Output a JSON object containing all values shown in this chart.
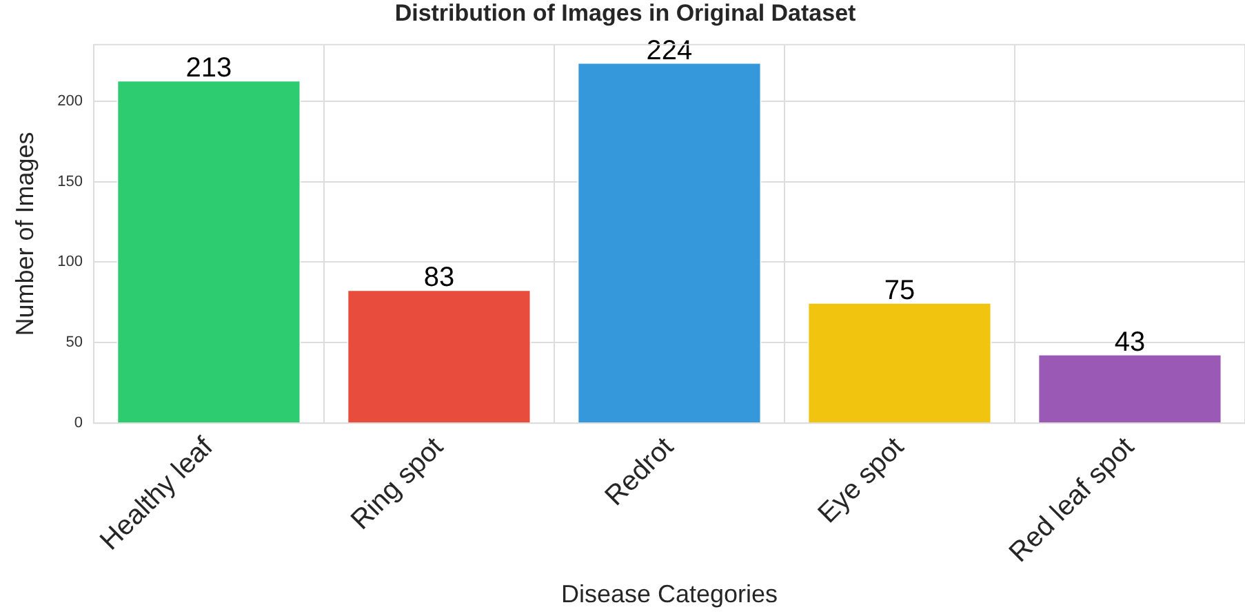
{
  "chart_data": {
    "type": "bar",
    "title": "Distribution of Images in Original Dataset",
    "xlabel": "Disease Categories",
    "ylabel": "Number of Images",
    "categories": [
      "Healthy leaf",
      "Ring spot",
      "Redrot",
      "Eye spot",
      "Red leaf spot"
    ],
    "values": [
      213,
      83,
      224,
      75,
      43
    ],
    "colors": [
      "#2ecc71",
      "#e74c3c",
      "#3498db",
      "#f1c40f",
      "#9b59b6"
    ],
    "ylim": [
      0,
      235
    ],
    "yticks": [
      0,
      50,
      100,
      150,
      200
    ],
    "grid": true,
    "data_labels": true,
    "legend": false
  }
}
